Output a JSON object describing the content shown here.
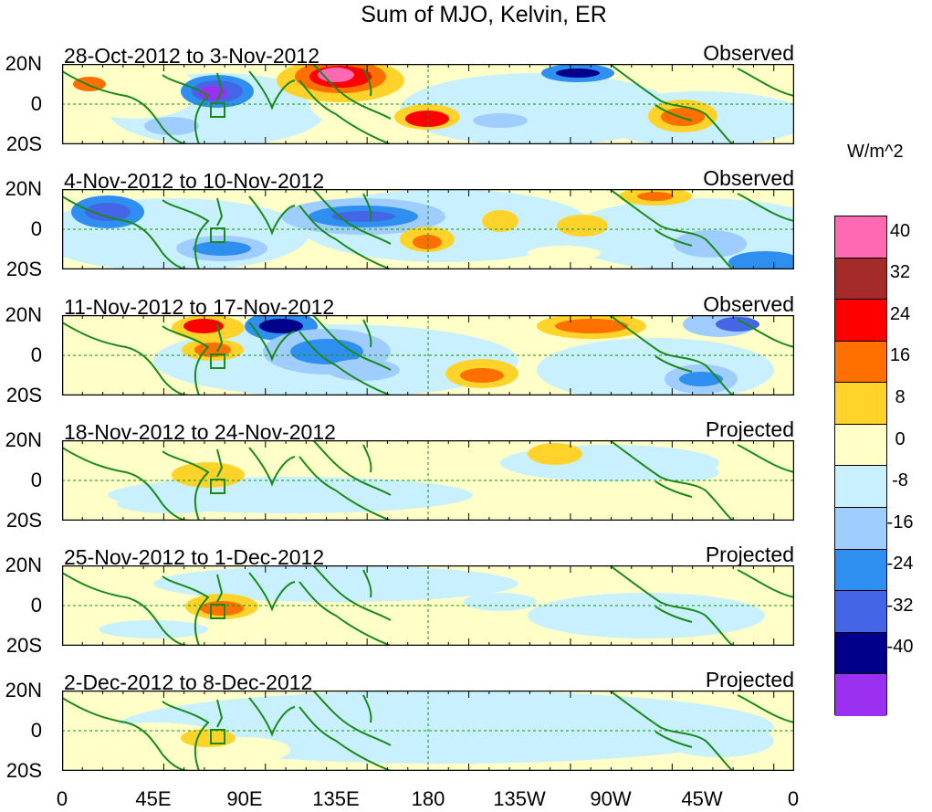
{
  "title": "Sum of MJO, Kelvin, ER",
  "panels": [
    {
      "date_range": "28-Oct-2012 to 3-Nov-2012",
      "status": "Observed"
    },
    {
      "date_range": "4-Nov-2012 to 10-Nov-2012",
      "status": "Observed"
    },
    {
      "date_range": "11-Nov-2012 to 17-Nov-2012",
      "status": "Observed"
    },
    {
      "date_range": "18-Nov-2012 to 24-Nov-2012",
      "status": "Projected"
    },
    {
      "date_range": "25-Nov-2012 to 1-Dec-2012",
      "status": "Projected"
    },
    {
      "date_range": "2-Dec-2012 to 8-Dec-2012",
      "status": "Projected"
    }
  ],
  "lat_labels": [
    "20N",
    "0",
    "20S"
  ],
  "lon_labels": [
    "0",
    "45E",
    "90E",
    "135E",
    "180",
    "135W",
    "90W",
    "45W",
    "0"
  ],
  "colorbar": {
    "units": "W/m^2",
    "colors": [
      "#ff69b4",
      "#a52a2a",
      "#ff0000",
      "#ff7000",
      "#ffd32a",
      "#ffffc8",
      "#c8f0ff",
      "#a0cdff",
      "#2f8ff0",
      "#4466e6",
      "#00008b",
      "#9a30f0"
    ],
    "labels": [
      "40",
      "32",
      "24",
      "16",
      "8",
      "0",
      "-8",
      "-16",
      "-24",
      "-32",
      "-40"
    ]
  },
  "colors": {
    "coast": "#1a8a1a",
    "zero_line": "#1a8a1a"
  }
}
